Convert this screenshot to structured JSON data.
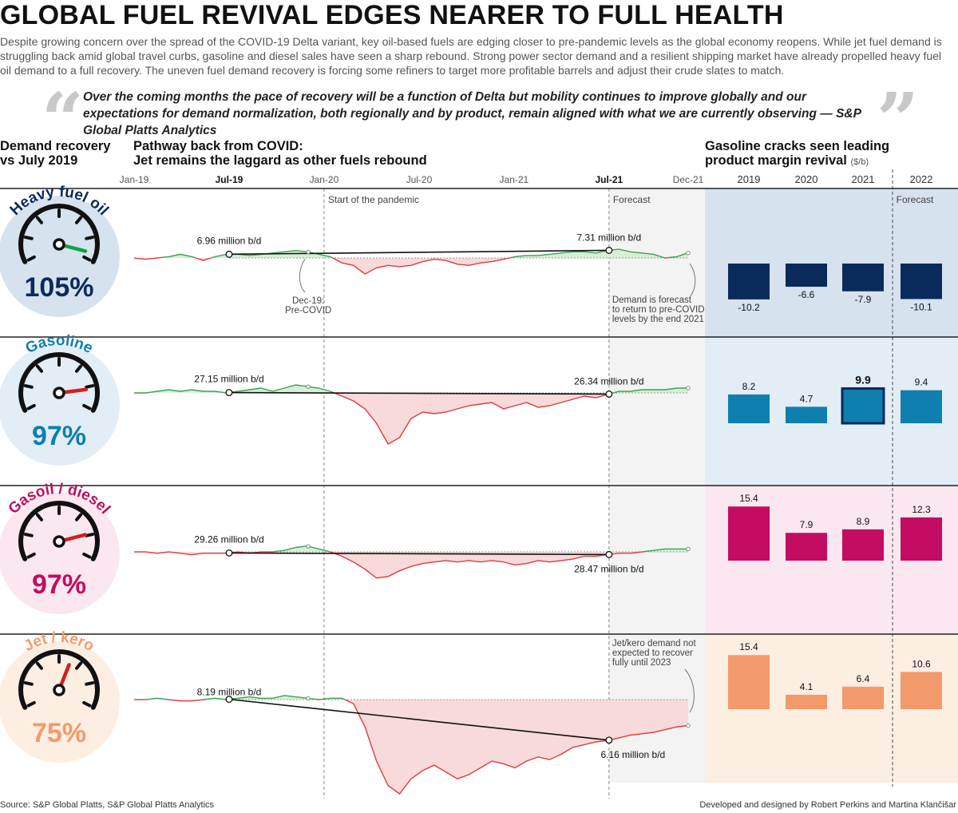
{
  "title": "GLOBAL FUEL REVIVAL EDGES NEARER TO FULL HEALTH",
  "intro": "Despite growing concern over the spread of the COVID-19 Delta variant, key oil-based fuels are edging closer to pre-pandemic levels as the global economy reopens. While jet fuel demand is struggling back amid global travel curbs, gasoline and diesel sales have seen a sharp rebound. Strong power sector demand and a resilient shipping market have already propelled heavy fuel oil demand to a full recovery. The uneven fuel demand recovery is forcing some refiners to target more profitable barrels and adjust their crude slates to match.",
  "quote": "Over the coming months the pace of recovery will be a function of Delta but mobility continues to improve globally and our expectations for demand normalization, both regionally and by product, remain aligned with what we are currently observing — S&P Global Platts Analytics",
  "headers": {
    "recovery": [
      "Demand recovery",
      "vs July 2019"
    ],
    "pathway": [
      "Pathway back from COVID:",
      "Jet remains the laggard as other fuels rebound"
    ],
    "cracks": [
      "Gasoline cracks seen leading",
      "product margin revival"
    ],
    "cracks_unit": "($/b)"
  },
  "footer": {
    "source": "Source: S&P Global Platts, S&P Global Platts Analytics",
    "credit": "Developed and designed by Robert Perkins and Martina Klančišar"
  },
  "colors": {
    "hfo": "#0b2a5c",
    "gasoline": "#0e7fae",
    "diesel": "#c30c62",
    "jet": "#f39a6b",
    "hfo_bg": "#d6e2ee",
    "gasoline_bg": "#e3edf6",
    "diesel_bg": "#fbe7ef",
    "jet_bg": "#fdeee2",
    "above": "#3aa24f",
    "below": "#e03c3c",
    "above_fill": "#d8eedb",
    "below_fill": "#f8dada"
  },
  "chart_data": [
    {
      "type": "line",
      "title": "Pathway back from COVID: Jet remains the laggard as other fuels rebound",
      "x_ticks": [
        "Jan-19",
        "Jul-19",
        "Jan-20",
        "Jul-20",
        "Jan-21",
        "Jul-21",
        "Dec-21"
      ],
      "x_ticks_bold": [
        "Jul-19",
        "Jul-21"
      ],
      "x_range": [
        "Jan-19",
        "Dec-21"
      ],
      "annotations": {
        "pandemic": "Start of the pandemic",
        "forecast": "Forecast",
        "pre_covid": [
          "Dec-19:",
          "Pre-COVID"
        ],
        "hfo_note": [
          "Demand is forecast",
          "to return to pre-COVID",
          "levels by the end 2021"
        ],
        "jet_note": [
          "Jet/kero demand not",
          "expected to recover",
          "fully until 2023"
        ]
      },
      "series": [
        {
          "name": "Heavy fuel oil",
          "recovery_pct": 105,
          "label_jul19": "6.96 million b/d",
          "label_jul21": "7.31 million b/d",
          "jul19": 6.96,
          "jul21": 7.31,
          "index": [
            0,
            -1,
            0,
            1,
            3,
            1,
            -2,
            1,
            3,
            3,
            2,
            3,
            4,
            5,
            6,
            5,
            3,
            1,
            -4,
            -6,
            -13,
            -8,
            -6,
            -7,
            -6,
            -3,
            -1,
            -2,
            -5,
            -6,
            -4,
            -3,
            -1,
            1,
            2,
            2,
            3,
            4,
            5,
            5,
            4,
            6,
            7,
            5,
            4,
            3,
            0,
            1,
            4
          ]
        },
        {
          "name": "Gasoline",
          "recovery_pct": 97,
          "label_jul19": "27.15 million b/d",
          "label_jul21": "26.34 million b/d",
          "jul19": 27.15,
          "jul21": 26.34,
          "index": [
            0,
            0,
            1,
            2,
            1,
            2,
            1,
            1,
            0,
            1,
            2,
            3,
            1,
            3,
            5,
            4,
            3,
            1,
            -2,
            -5,
            -10,
            -19,
            -32,
            -28,
            -16,
            -12,
            -13,
            -12,
            -10,
            -8,
            -7,
            -6,
            -10,
            -8,
            -6,
            -9,
            -8,
            -6,
            -4,
            -2,
            -3,
            -1,
            1,
            1,
            2,
            2,
            2,
            3,
            3
          ]
        },
        {
          "name": "Gasoil / diesel",
          "recovery_pct": 97,
          "label_jul19": "29.26 million b/d",
          "label_jul21": "28.47 million b/d",
          "jul19": 29.26,
          "jul21": 28.47,
          "index": [
            0,
            0,
            -1,
            0,
            -1,
            -2,
            -1,
            -1,
            -1,
            0,
            -1,
            0,
            0,
            1,
            3,
            4,
            2,
            0,
            -3,
            -7,
            -12,
            -18,
            -17,
            -13,
            -10,
            -8,
            -7,
            -6,
            -7,
            -6,
            -7,
            -6,
            -7,
            -9,
            -8,
            -6,
            -7,
            -6,
            -5,
            -3,
            -3,
            -2,
            -1,
            -1,
            0,
            1,
            2,
            2,
            2
          ]
        },
        {
          "name": "Jet / kero",
          "recovery_pct": 75,
          "label_jul19": "8.19 million b/d",
          "label_jul21": "6.16 million b/d",
          "jul19": 8.19,
          "jul21": 6.16,
          "index": [
            0,
            0,
            1,
            0,
            -1,
            -1,
            0,
            1,
            0,
            1,
            2,
            1,
            1,
            3,
            2,
            1,
            0,
            1,
            1,
            -3,
            -20,
            -45,
            -63,
            -69,
            -58,
            -52,
            -48,
            -53,
            -58,
            -55,
            -50,
            -45,
            -47,
            -50,
            -45,
            -42,
            -44,
            -40,
            -35,
            -33,
            -31,
            -30,
            -28,
            -26,
            -25,
            -24,
            -22,
            -20,
            -19
          ]
        }
      ]
    },
    {
      "type": "bar",
      "title": "Gasoline cracks seen leading product margin revival",
      "ylabel": "($/b)",
      "categories": [
        "2019",
        "2020",
        "2021",
        "2022"
      ],
      "forecast_label": "Forecast",
      "forecast_from": "2022",
      "series": [
        {
          "name": "Heavy fuel oil",
          "values": [
            -10.2,
            -6.6,
            -7.9,
            -10.1
          ]
        },
        {
          "name": "Gasoline",
          "values": [
            8.2,
            4.7,
            9.9,
            9.4
          ],
          "highlight": "2021"
        },
        {
          "name": "Gasoil / diesel",
          "values": [
            15.4,
            7.9,
            8.9,
            12.3
          ]
        },
        {
          "name": "Jet / kero",
          "values": [
            15.4,
            4.1,
            6.4,
            10.6
          ]
        }
      ]
    }
  ]
}
